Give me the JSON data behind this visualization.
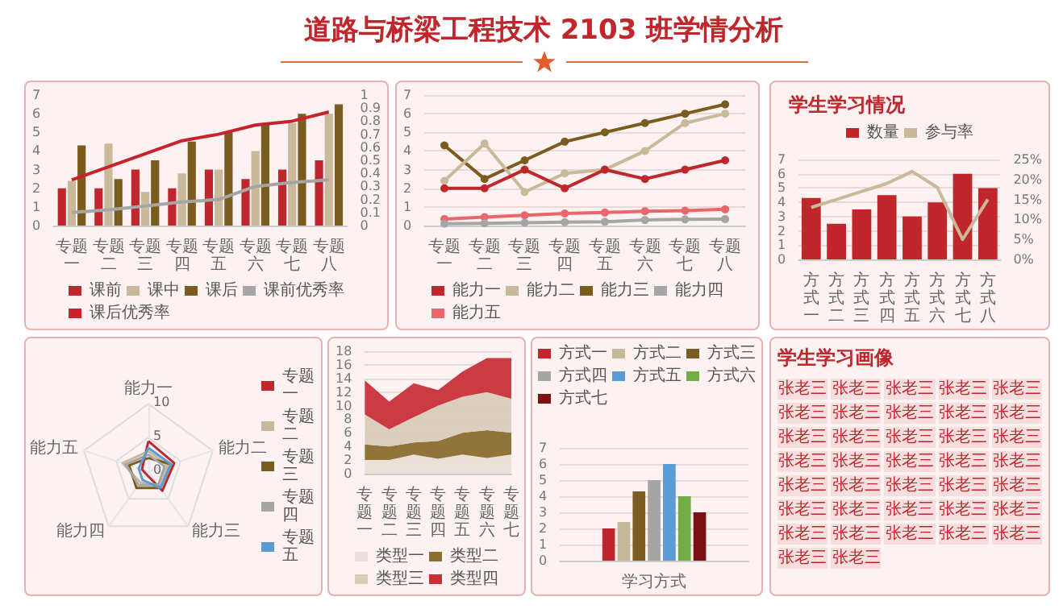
{
  "chart_data": [
    {
      "type": "other",
      "title": "道路与桥梁工程技术 2103 班学情分析"
    },
    {
      "type": "bar",
      "categories": [
        "专题一",
        "专题二",
        "专题三",
        "专题四",
        "专题五",
        "专题六",
        "专题七",
        "专题八"
      ],
      "series": [
        {
          "name": "课前",
          "color": "#c0272d",
          "values": [
            2,
            2,
            3,
            2,
            3,
            2.5,
            3,
            3.5
          ]
        },
        {
          "name": "课中",
          "color": "#c9b99a",
          "values": [
            2.4,
            4.4,
            1.8,
            2.8,
            3,
            4,
            5.5,
            6
          ]
        },
        {
          "name": "课后",
          "color": "#7a5c1e",
          "values": [
            4.3,
            2.5,
            3.5,
            4.5,
            5,
            5.5,
            6,
            6.5
          ]
        },
        {
          "name": "课前优秀率",
          "type": "line",
          "axis": "y2",
          "color": "#a5a5a5",
          "values": [
            0.1,
            0.12,
            0.15,
            0.18,
            0.2,
            0.3,
            0.33,
            0.35
          ]
        },
        {
          "name": "课后优秀率",
          "type": "line",
          "axis": "y2",
          "color": "#c8232c",
          "values": [
            0.35,
            0.45,
            0.55,
            0.65,
            0.7,
            0.77,
            0.8,
            0.87
          ]
        }
      ],
      "ylim": [
        0,
        7
      ],
      "yticks": [
        0,
        1,
        2,
        3,
        4,
        5,
        6,
        7
      ],
      "y2lim": [
        0,
        1
      ],
      "y2ticks": [
        0,
        0.1,
        0.2,
        0.3,
        0.4,
        0.5,
        0.6,
        0.7,
        0.8,
        0.9,
        1
      ],
      "legend": "bottom"
    },
    {
      "type": "line",
      "categories": [
        "专题一",
        "专题二",
        "专题三",
        "专题四",
        "专题五",
        "专题六",
        "专题七",
        "专题八"
      ],
      "series": [
        {
          "name": "能力一",
          "color": "#c0272d",
          "values": [
            2,
            2,
            3,
            2,
            3,
            2.5,
            3,
            3.5
          ]
        },
        {
          "name": "能力二",
          "color": "#c9b99a",
          "values": [
            2.4,
            4.4,
            1.8,
            2.8,
            3,
            4,
            5.5,
            6
          ]
        },
        {
          "name": "能力三",
          "color": "#7a5c1e",
          "values": [
            4.3,
            2.5,
            3.5,
            4.5,
            5,
            5.5,
            6,
            6.5
          ]
        },
        {
          "name": "能力四",
          "color": "#a5a5a5",
          "values": [
            0.1,
            0.12,
            0.15,
            0.18,
            0.2,
            0.3,
            0.33,
            0.35
          ]
        },
        {
          "name": "能力五",
          "color": "#e8666c",
          "values": [
            0.35,
            0.45,
            0.55,
            0.65,
            0.7,
            0.77,
            0.8,
            0.87
          ]
        }
      ],
      "ylim": [
        0,
        7
      ],
      "yticks": [
        0,
        1,
        2,
        3,
        4,
        5,
        6,
        7
      ],
      "grid": "y",
      "marker": "circle",
      "legend": "bottom"
    },
    {
      "type": "bar",
      "title": "学生学习情况",
      "categories": [
        "方式一",
        "方式二",
        "方式三",
        "方式四",
        "方式五",
        "方式六",
        "方式七",
        "方式八"
      ],
      "series": [
        {
          "name": "数量",
          "color": "#c0272d",
          "values": [
            4.3,
            2.5,
            3.5,
            4.5,
            3,
            4,
            6,
            5
          ]
        },
        {
          "name": "参与率",
          "type": "line",
          "axis": "y2",
          "color": "#c9b99a",
          "values": [
            13,
            15,
            17,
            19,
            22,
            18,
            5,
            15
          ]
        }
      ],
      "ylim": [
        0,
        7
      ],
      "yticks": [
        0,
        1,
        2,
        3,
        4,
        5,
        6,
        7
      ],
      "y2lim": [
        0,
        25
      ],
      "y2ticks": [
        {
          "value": 0,
          "label": "0%"
        },
        {
          "value": 5,
          "label": "5%"
        },
        {
          "value": 10,
          "label": "10%"
        },
        {
          "value": 15,
          "label": "15%"
        },
        {
          "value": 20,
          "label": "20%"
        },
        {
          "value": 25,
          "label": "25%"
        }
      ],
      "grid": "y",
      "legend": "top"
    },
    {
      "type": "radar",
      "categories": [
        "能力一",
        "能力二",
        "能力三",
        "能力四",
        "能力五"
      ],
      "series": [
        {
          "name": "专题一",
          "color": "#c0272d",
          "values": [
            4.5,
            4,
            3.5,
            0.5,
            1
          ]
        },
        {
          "name": "专题二",
          "color": "#c9b99a",
          "values": [
            3,
            3,
            2.5,
            2,
            4
          ]
        },
        {
          "name": "专题三",
          "color": "#7a5c1e",
          "values": [
            2,
            3.5,
            3,
            3,
            3
          ]
        },
        {
          "name": "专题四",
          "color": "#a5a5a5",
          "values": [
            2.5,
            2.5,
            2.5,
            2.5,
            3.5
          ]
        },
        {
          "name": "专题五",
          "color": "#5b9bd5",
          "values": [
            3.5,
            3.5,
            3,
            1.5,
            1.5
          ]
        }
      ],
      "ylim": [
        0,
        10
      ],
      "yticks": [
        0,
        5,
        10
      ],
      "legend": "right"
    },
    {
      "type": "area",
      "stacked": true,
      "categories": [
        "专题一",
        "专题二",
        "专题三",
        "专题四",
        "专题五",
        "专题六",
        "专题七"
      ],
      "series": [
        {
          "name": "类型一",
          "color": "#e9dfd6",
          "values": [
            2,
            2,
            2.8,
            2.2,
            2.8,
            2.3,
            2.8
          ]
        },
        {
          "name": "类型二",
          "color": "#8b6d2e",
          "values": [
            2.3,
            2,
            1.8,
            2.6,
            3.2,
            4.1,
            3.2
          ]
        },
        {
          "name": "类型三",
          "color": "#d8cbb8",
          "values": [
            4.4,
            2.5,
            3.7,
            5.2,
            5.3,
            5.6,
            5
          ]
        },
        {
          "name": "类型四",
          "color": "#c9303a",
          "values": [
            5,
            4.1,
            5,
            2.3,
            3.7,
            5,
            6
          ]
        }
      ],
      "ylim": [
        0,
        18
      ],
      "yticks": [
        0,
        2,
        4,
        6,
        8,
        10,
        12,
        14,
        16,
        18
      ],
      "grid": "y",
      "legend": "bottom"
    },
    {
      "type": "bar",
      "categories": [
        "学习方式"
      ],
      "series": [
        {
          "name": "方式一",
          "color": "#c0272d",
          "values": [
            2
          ]
        },
        {
          "name": "方式二",
          "color": "#c8b89a",
          "values": [
            2.4
          ]
        },
        {
          "name": "方式三",
          "color": "#7b5c22",
          "values": [
            4.3
          ]
        },
        {
          "name": "方式四",
          "color": "#a5a5a5",
          "values": [
            5
          ]
        },
        {
          "name": "方式五",
          "color": "#5b9bd5",
          "values": [
            6
          ]
        },
        {
          "name": "方式六",
          "color": "#70ad47",
          "values": [
            4
          ]
        },
        {
          "name": "方式七",
          "color": "#7b1015",
          "values": [
            3
          ]
        }
      ],
      "ylim": [
        0,
        7
      ],
      "yticks": [
        0,
        1,
        2,
        3,
        4,
        5,
        6,
        7
      ],
      "grid": "y",
      "legend": "top"
    },
    {
      "type": "other",
      "title": "学生学习画像",
      "annotations": [
        "张老三",
        "张老三",
        "张老三",
        "张老三",
        "张老三",
        "张老三",
        "张老三",
        "张老三",
        "张老三",
        "张老三",
        "张老三",
        "张老三",
        "张老三",
        "张老三",
        "张老三",
        "张老三",
        "张老三",
        "张老三",
        "张老三",
        "张老三",
        "张老三",
        "张老三",
        "张老三",
        "张老三",
        "张老三",
        "张老三",
        "张老三",
        "张老三",
        "张老三",
        "张老三",
        "张老三",
        "张老三",
        "张老三",
        "张老三",
        "张老三",
        "张老三",
        "张老三"
      ]
    }
  ]
}
